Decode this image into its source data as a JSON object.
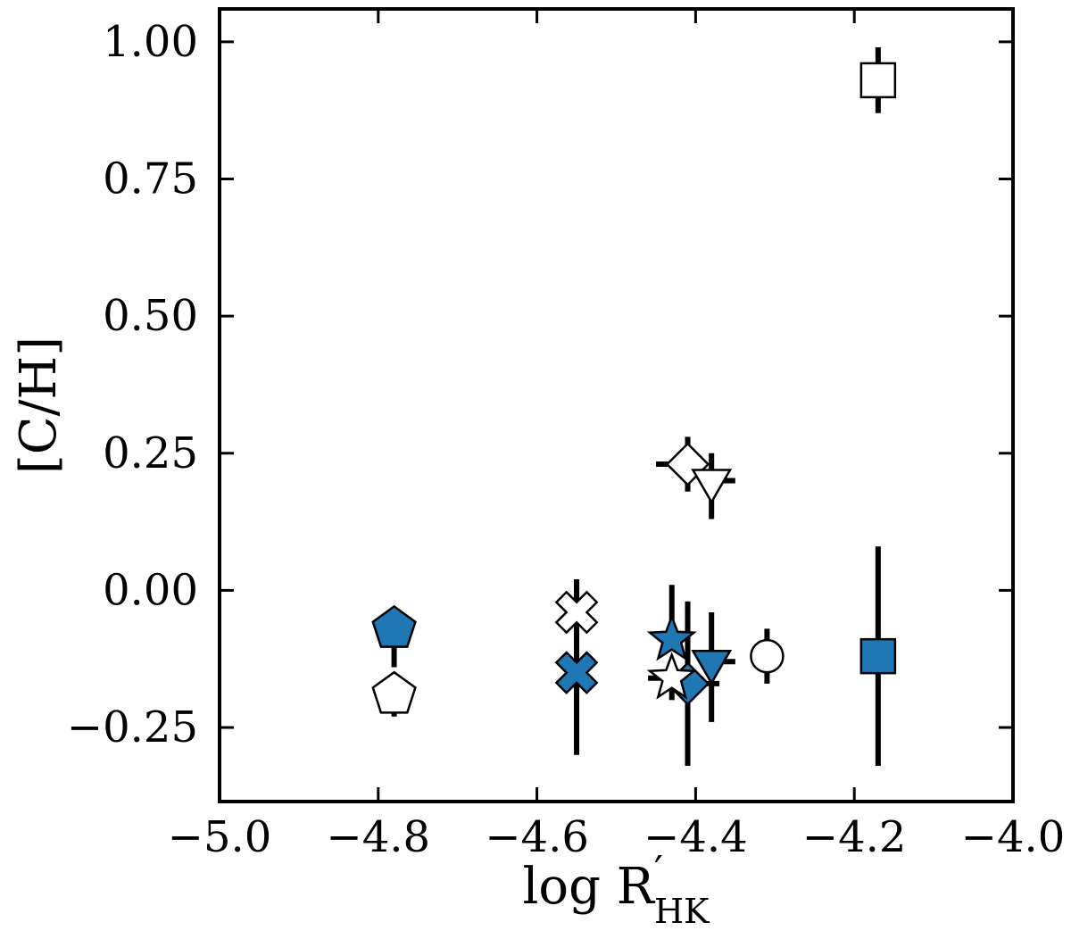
{
  "chart_data": {
    "type": "scatter",
    "title": "",
    "xlabel": "log R",
    "xlabel_sup": "′",
    "xlabel_sub": "HK",
    "ylabel": "[C/H]",
    "xlim": [
      -5.0,
      -4.0
    ],
    "ylim": [
      -0.385,
      1.06
    ],
    "x_ticks": [
      -5.0,
      -4.8,
      -4.6,
      -4.4,
      -4.2,
      -4.0
    ],
    "x_tick_labels": [
      "−5.0",
      "−4.8",
      "−4.6",
      "−4.4",
      "−4.2",
      "−4.0"
    ],
    "y_ticks": [
      -0.25,
      0.0,
      0.25,
      0.5,
      0.75,
      1.0
    ],
    "y_tick_labels": [
      "−0.25",
      "0.00",
      "0.25",
      "0.50",
      "0.75",
      "1.00"
    ],
    "grid": false,
    "legend": "none",
    "colors": {
      "filled": "#1f77b4",
      "open": "#ffffff",
      "edge": "#000000"
    },
    "points": [
      {
        "marker": "pentagon",
        "fill": "filled",
        "x": -4.78,
        "y": -0.07,
        "yerr": [
          0.07,
          0.0
        ],
        "xerr": [
          0.0,
          0.0
        ]
      },
      {
        "marker": "pentagon",
        "fill": "open",
        "x": -4.78,
        "y": -0.19,
        "yerr": [
          0.04,
          0.0
        ],
        "xerr": [
          0.0,
          0.0
        ]
      },
      {
        "marker": "x",
        "fill": "filled",
        "x": -4.55,
        "y": -0.15,
        "yerr": [
          0.15,
          0.17
        ],
        "xerr": [
          0.0,
          0.0
        ]
      },
      {
        "marker": "x",
        "fill": "open",
        "x": -4.55,
        "y": -0.04,
        "yerr": [
          0.0,
          0.06
        ],
        "xerr": [
          0.0,
          0.0
        ]
      },
      {
        "marker": "diamond",
        "fill": "open",
        "x": -4.41,
        "y": 0.23,
        "yerr": [
          0.05,
          0.05
        ],
        "xerr": [
          0.04,
          0.0
        ]
      },
      {
        "marker": "diamond",
        "fill": "filled",
        "x": -4.41,
        "y": -0.17,
        "yerr": [
          0.15,
          0.15
        ],
        "xerr": [
          0.0,
          0.04
        ]
      },
      {
        "marker": "triangle-down",
        "fill": "open",
        "x": -4.38,
        "y": 0.2,
        "yerr": [
          0.07,
          0.05
        ],
        "xerr": [
          0.0,
          0.03
        ]
      },
      {
        "marker": "triangle-down",
        "fill": "filled",
        "x": -4.38,
        "y": -0.13,
        "yerr": [
          0.11,
          0.09
        ],
        "xerr": [
          0.0,
          0.03
        ]
      },
      {
        "marker": "star",
        "fill": "open",
        "x": -4.43,
        "y": -0.16,
        "yerr": [
          0.04,
          0.0
        ],
        "xerr": [
          0.03,
          0.0
        ]
      },
      {
        "marker": "star",
        "fill": "filled",
        "x": -4.43,
        "y": -0.09,
        "yerr": [
          0.0,
          0.1
        ],
        "xerr": [
          0.0,
          0.0
        ]
      },
      {
        "marker": "circle",
        "fill": "open",
        "x": -4.31,
        "y": -0.12,
        "yerr": [
          0.05,
          0.05
        ],
        "xerr": [
          0.0,
          0.0
        ]
      },
      {
        "marker": "square",
        "fill": "open",
        "x": -4.17,
        "y": 0.93,
        "yerr": [
          0.06,
          0.06
        ],
        "xerr": [
          0.0,
          0.0
        ]
      },
      {
        "marker": "square",
        "fill": "filled",
        "x": -4.17,
        "y": -0.12,
        "yerr": [
          0.2,
          0.2
        ],
        "xerr": [
          0.0,
          0.0
        ]
      }
    ]
  }
}
